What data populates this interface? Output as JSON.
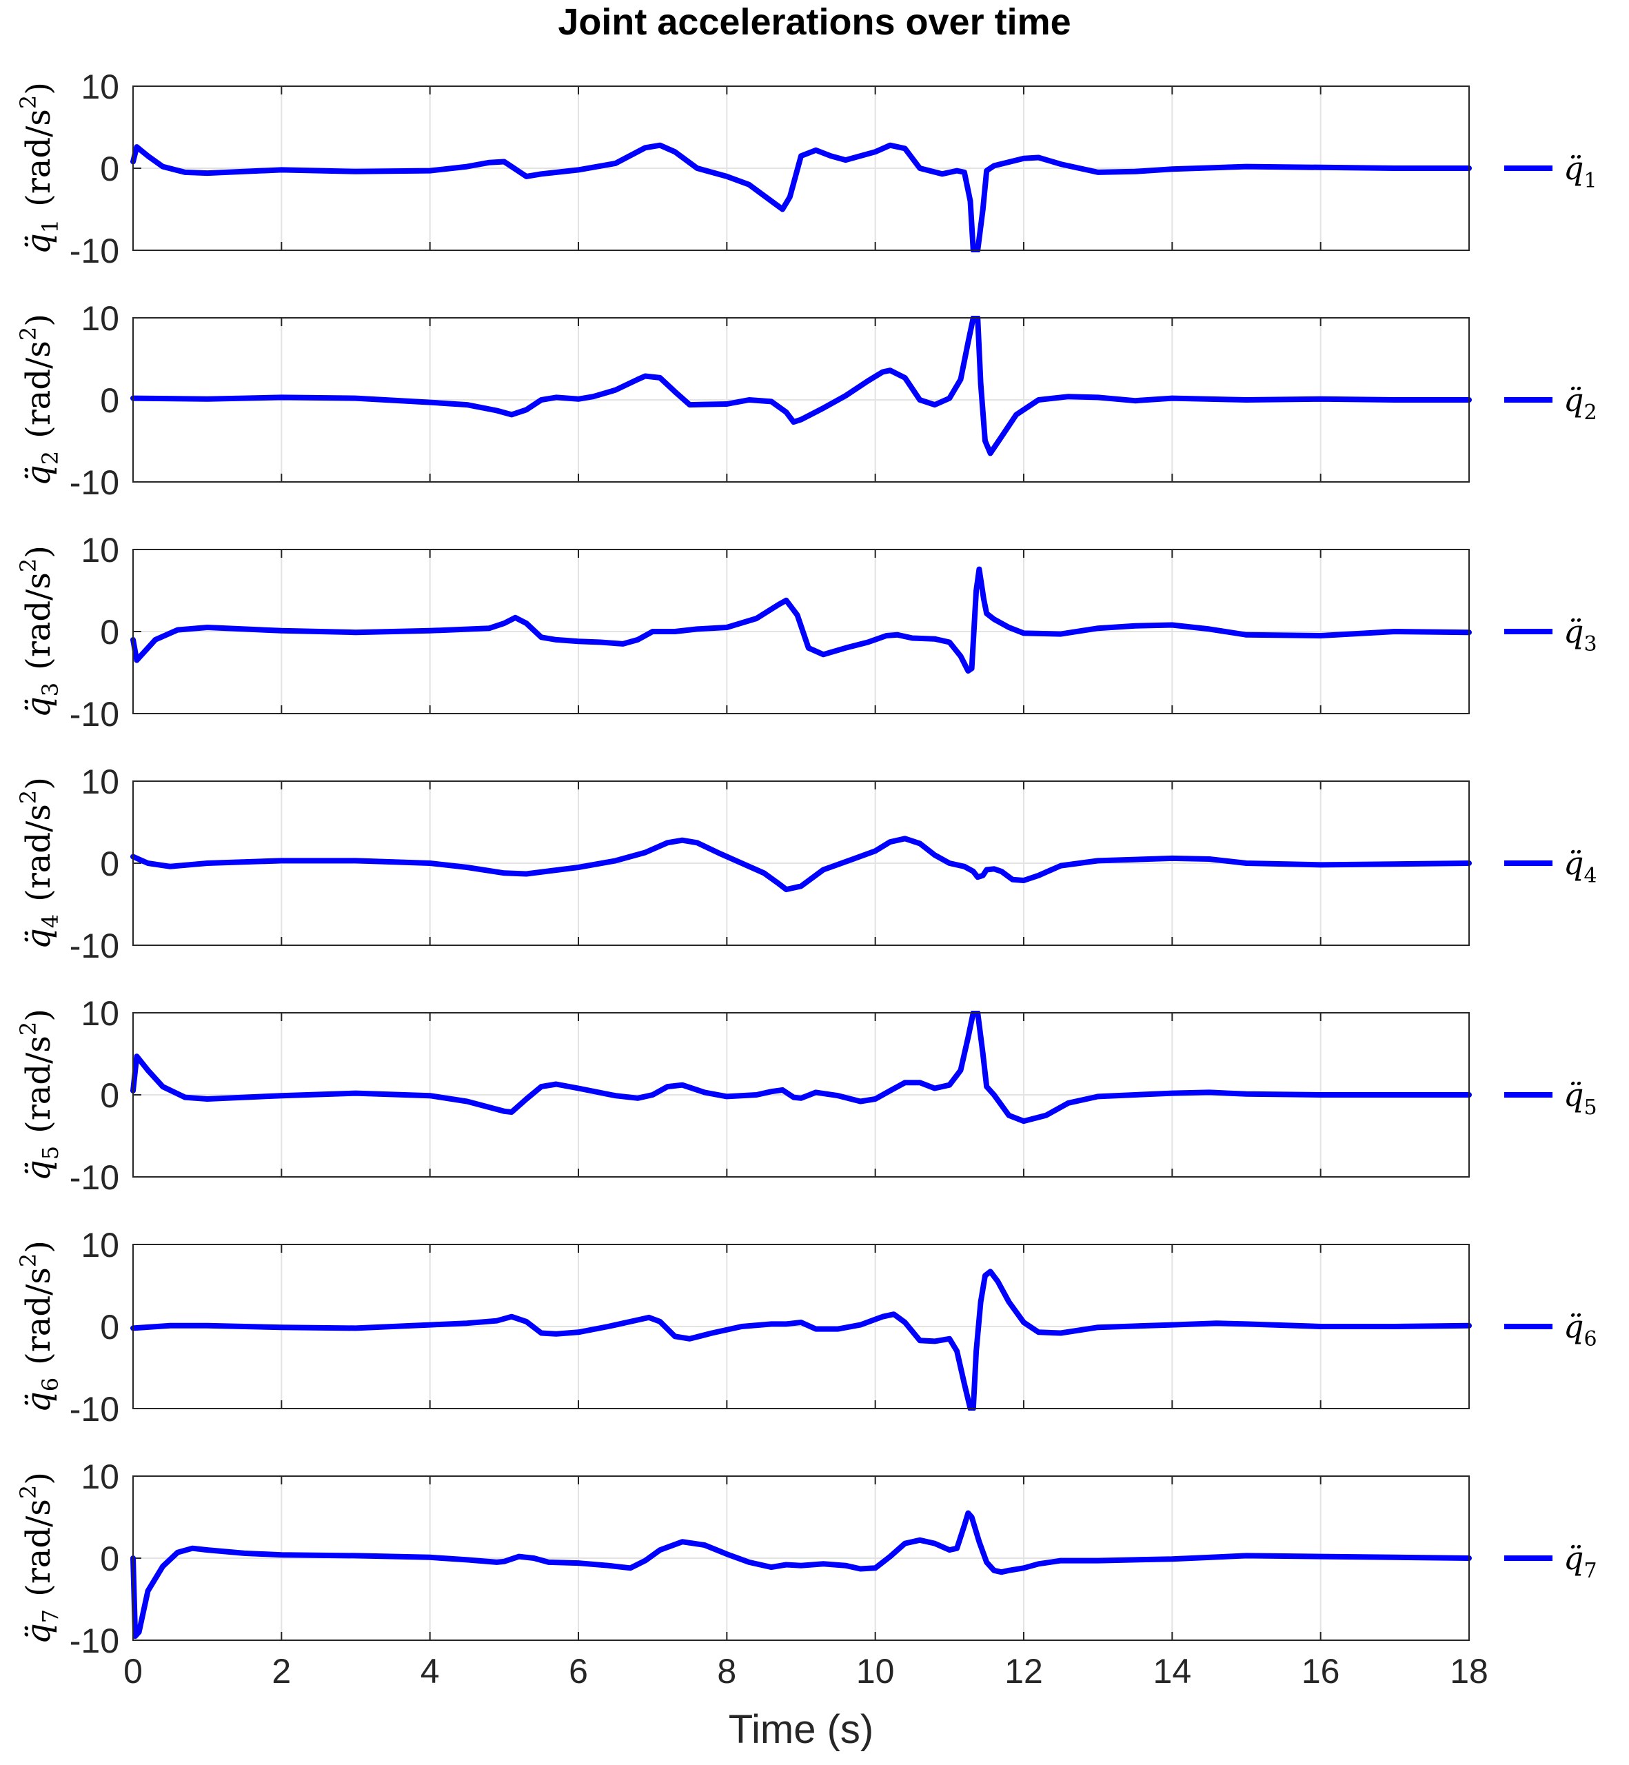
{
  "chart_data": {
    "type": "line",
    "title": "Joint accelerations over time",
    "xlabel": "Time (s)",
    "xlim": [
      0,
      18
    ],
    "ylim": [
      -10,
      10
    ],
    "x_ticks": [
      0,
      2,
      4,
      6,
      8,
      10,
      12,
      14,
      16,
      18
    ],
    "y_ticks": [
      -10,
      0,
      10
    ],
    "grid": true,
    "line_color": "#0000ff",
    "legend_placement": "right of each subplot",
    "subplots": [
      {
        "ylabel": {
          "symbol": "q̈",
          "sub": "1",
          "unit": "(rad/s",
          "sup": "2",
          "close": ")"
        },
        "legend": {
          "symbol": "q̈",
          "sub": "1"
        },
        "x": [
          0,
          0.05,
          0.2,
          0.4,
          0.7,
          1.0,
          2.0,
          3.0,
          4.0,
          4.5,
          4.8,
          5.0,
          5.1,
          5.3,
          5.5,
          6.0,
          6.5,
          6.9,
          7.1,
          7.3,
          7.6,
          8.0,
          8.3,
          8.6,
          8.75,
          8.85,
          9.0,
          9.2,
          9.4,
          9.6,
          10.0,
          10.2,
          10.4,
          10.6,
          10.9,
          11.1,
          11.2,
          11.28,
          11.32,
          11.38,
          11.45,
          11.5,
          11.6,
          12.0,
          12.2,
          12.5,
          13.0,
          13.5,
          14.0,
          15.0,
          16.0,
          17.0,
          18.0
        ],
        "y": [
          0.8,
          2.6,
          1.5,
          0.2,
          -0.5,
          -0.6,
          -0.2,
          -0.4,
          -0.3,
          0.2,
          0.7,
          0.8,
          0.2,
          -1.0,
          -0.7,
          -0.2,
          0.6,
          2.5,
          2.8,
          2.0,
          0.0,
          -1.0,
          -2.0,
          -4.0,
          -5.0,
          -3.5,
          1.5,
          2.2,
          1.5,
          1.0,
          2.0,
          2.8,
          2.4,
          0.0,
          -0.7,
          -0.3,
          -0.5,
          -4.0,
          -10.0,
          -10.0,
          -5.0,
          -0.3,
          0.3,
          1.2,
          1.3,
          0.5,
          -0.5,
          -0.4,
          -0.1,
          0.2,
          0.1,
          0.0,
          0.0
        ]
      },
      {
        "ylabel": {
          "symbol": "q̈",
          "sub": "2",
          "unit": "(rad/s",
          "sup": "2",
          "close": ")"
        },
        "legend": {
          "symbol": "q̈",
          "sub": "2"
        },
        "x": [
          0,
          1.0,
          2.0,
          3.0,
          4.0,
          4.5,
          4.9,
          5.1,
          5.3,
          5.5,
          5.7,
          6.0,
          6.2,
          6.5,
          6.8,
          6.9,
          7.1,
          7.3,
          7.5,
          8.0,
          8.3,
          8.6,
          8.8,
          8.9,
          9.0,
          9.3,
          9.6,
          9.9,
          10.1,
          10.2,
          10.4,
          10.6,
          10.8,
          11.0,
          11.15,
          11.25,
          11.32,
          11.38,
          11.42,
          11.48,
          11.55,
          11.7,
          11.9,
          12.2,
          12.6,
          13.0,
          13.5,
          14.0,
          15.0,
          16.0,
          17.0,
          18.0
        ],
        "y": [
          0.2,
          0.1,
          0.3,
          0.2,
          -0.3,
          -0.6,
          -1.3,
          -1.8,
          -1.2,
          0.0,
          0.3,
          0.1,
          0.4,
          1.2,
          2.5,
          2.9,
          2.7,
          1.0,
          -0.6,
          -0.5,
          0.0,
          -0.2,
          -1.5,
          -2.7,
          -2.4,
          -1.0,
          0.5,
          2.3,
          3.4,
          3.6,
          2.7,
          0.0,
          -0.6,
          0.2,
          2.5,
          7.0,
          10.0,
          10.0,
          2.0,
          -5.0,
          -6.5,
          -4.5,
          -1.8,
          0.0,
          0.4,
          0.3,
          -0.1,
          0.2,
          0.0,
          0.1,
          0.0,
          0.0
        ]
      },
      {
        "ylabel": {
          "symbol": "q̈",
          "sub": "3",
          "unit": "(rad/s",
          "sup": "2",
          "close": ")"
        },
        "legend": {
          "symbol": "q̈",
          "sub": "3"
        },
        "x": [
          0,
          0.05,
          0.3,
          0.6,
          1.0,
          2.0,
          3.0,
          4.0,
          4.8,
          5.0,
          5.15,
          5.3,
          5.5,
          5.7,
          6.0,
          6.3,
          6.6,
          6.8,
          7.0,
          7.3,
          7.6,
          8.0,
          8.4,
          8.7,
          8.8,
          8.95,
          9.1,
          9.3,
          9.6,
          9.9,
          10.15,
          10.3,
          10.5,
          10.8,
          11.0,
          11.15,
          11.25,
          11.3,
          11.36,
          11.4,
          11.46,
          11.5,
          11.6,
          11.8,
          12.0,
          12.5,
          13.0,
          13.5,
          14.0,
          14.5,
          15.0,
          16.0,
          17.0,
          18.0
        ],
        "y": [
          -1.0,
          -3.5,
          -1.0,
          0.2,
          0.5,
          0.1,
          -0.1,
          0.1,
          0.4,
          1.0,
          1.7,
          1.0,
          -0.7,
          -1.0,
          -1.2,
          -1.3,
          -1.5,
          -1.0,
          0.0,
          0.0,
          0.3,
          0.5,
          1.6,
          3.3,
          3.8,
          2.0,
          -2.0,
          -2.8,
          -2.0,
          -1.3,
          -0.5,
          -0.4,
          -0.8,
          -0.9,
          -1.3,
          -3.0,
          -4.8,
          -4.5,
          5.0,
          7.6,
          4.0,
          2.2,
          1.5,
          0.5,
          -0.2,
          -0.3,
          0.4,
          0.7,
          0.8,
          0.3,
          -0.4,
          -0.5,
          0.0,
          -0.1
        ]
      },
      {
        "ylabel": {
          "symbol": "q̈",
          "sub": "4",
          "unit": "(rad/s",
          "sup": "2",
          "close": ")"
        },
        "legend": {
          "symbol": "q̈",
          "sub": "4"
        },
        "x": [
          0,
          0.2,
          0.5,
          1.0,
          2.0,
          3.0,
          4.0,
          4.5,
          5.0,
          5.3,
          6.0,
          6.5,
          6.9,
          7.2,
          7.4,
          7.6,
          7.9,
          8.2,
          8.5,
          8.7,
          8.8,
          9.0,
          9.3,
          9.7,
          10.0,
          10.2,
          10.4,
          10.6,
          10.8,
          11.0,
          11.2,
          11.32,
          11.38,
          11.45,
          11.5,
          11.6,
          11.7,
          11.85,
          12.0,
          12.2,
          12.5,
          13.0,
          14.0,
          14.5,
          15.0,
          16.0,
          17.0,
          18.0
        ],
        "y": [
          0.8,
          0.0,
          -0.4,
          0.0,
          0.3,
          0.3,
          0.0,
          -0.5,
          -1.2,
          -1.3,
          -0.5,
          0.3,
          1.3,
          2.5,
          2.8,
          2.5,
          1.2,
          0.0,
          -1.2,
          -2.5,
          -3.2,
          -2.8,
          -0.8,
          0.5,
          1.5,
          2.6,
          3.0,
          2.4,
          1.0,
          0.0,
          -0.4,
          -1.0,
          -1.7,
          -1.5,
          -0.8,
          -0.7,
          -1.0,
          -2.0,
          -2.1,
          -1.5,
          -0.3,
          0.3,
          0.6,
          0.5,
          0.0,
          -0.2,
          -0.1,
          0.0
        ]
      },
      {
        "ylabel": {
          "symbol": "q̈",
          "sub": "5",
          "unit": "(rad/s",
          "sup": "2",
          "close": ")"
        },
        "legend": {
          "symbol": "q̈",
          "sub": "5"
        },
        "x": [
          0,
          0.05,
          0.2,
          0.4,
          0.7,
          1.0,
          2.0,
          3.0,
          4.0,
          4.5,
          5.0,
          5.1,
          5.3,
          5.5,
          5.7,
          6.0,
          6.5,
          6.8,
          7.0,
          7.2,
          7.4,
          7.7,
          8.0,
          8.4,
          8.6,
          8.75,
          8.9,
          9.0,
          9.2,
          9.5,
          9.8,
          10.0,
          10.2,
          10.4,
          10.6,
          10.8,
          11.0,
          11.15,
          11.25,
          11.32,
          11.38,
          11.45,
          11.5,
          11.6,
          11.8,
          12.0,
          12.3,
          12.6,
          13.0,
          14.0,
          14.5,
          15.0,
          16.0,
          17.0,
          18.0
        ],
        "y": [
          0.5,
          4.7,
          3.0,
          1.0,
          -0.3,
          -0.5,
          -0.1,
          0.2,
          -0.1,
          -0.8,
          -2.0,
          -2.1,
          -0.5,
          1.0,
          1.3,
          0.8,
          -0.1,
          -0.4,
          0.0,
          1.0,
          1.2,
          0.3,
          -0.2,
          0.0,
          0.4,
          0.6,
          -0.3,
          -0.4,
          0.3,
          -0.1,
          -0.8,
          -0.5,
          0.5,
          1.5,
          1.5,
          0.8,
          1.2,
          3.0,
          7.0,
          10.0,
          10.0,
          5.0,
          1.0,
          0.0,
          -2.5,
          -3.2,
          -2.5,
          -1.0,
          -0.2,
          0.2,
          0.3,
          0.1,
          0.0,
          0.0,
          0.0
        ]
      },
      {
        "ylabel": {
          "symbol": "q̈",
          "sub": "6",
          "unit": "(rad/s",
          "sup": "2",
          "close": ")"
        },
        "legend": {
          "symbol": "q̈",
          "sub": "6"
        },
        "x": [
          0,
          0.5,
          1.0,
          2.0,
          3.0,
          4.0,
          4.5,
          4.9,
          5.1,
          5.3,
          5.5,
          5.7,
          6.0,
          6.4,
          6.8,
          6.95,
          7.1,
          7.3,
          7.5,
          7.8,
          8.2,
          8.6,
          8.8,
          8.9,
          9.0,
          9.2,
          9.5,
          9.8,
          10.1,
          10.25,
          10.4,
          10.6,
          10.8,
          11.0,
          11.1,
          11.2,
          11.28,
          11.32,
          11.36,
          11.42,
          11.48,
          11.55,
          11.65,
          11.8,
          12.0,
          12.2,
          12.5,
          13.0,
          14.0,
          14.6,
          15.0,
          16.0,
          17.0,
          18.0
        ],
        "y": [
          -0.2,
          0.1,
          0.1,
          -0.1,
          -0.2,
          0.2,
          0.4,
          0.7,
          1.2,
          0.6,
          -0.8,
          -0.9,
          -0.7,
          0.0,
          0.8,
          1.1,
          0.6,
          -1.2,
          -1.5,
          -0.8,
          0.0,
          0.3,
          0.3,
          0.4,
          0.5,
          -0.3,
          -0.3,
          0.2,
          1.2,
          1.5,
          0.5,
          -1.7,
          -1.8,
          -1.5,
          -3.0,
          -7.0,
          -10.0,
          -10.0,
          -3.0,
          3.0,
          6.2,
          6.7,
          5.5,
          3.0,
          0.5,
          -0.7,
          -0.8,
          -0.1,
          0.2,
          0.4,
          0.3,
          0.0,
          0.0,
          0.1
        ]
      },
      {
        "ylabel": {
          "symbol": "q̈",
          "sub": "7",
          "unit": "(rad/s",
          "sup": "2",
          "close": ")"
        },
        "legend": {
          "symbol": "q̈",
          "sub": "7"
        },
        "x": [
          0,
          0.03,
          0.08,
          0.2,
          0.4,
          0.6,
          0.8,
          1.0,
          1.5,
          2.0,
          3.0,
          4.0,
          4.5,
          4.9,
          5.0,
          5.2,
          5.4,
          5.6,
          6.0,
          6.4,
          6.7,
          6.9,
          7.1,
          7.4,
          7.7,
          8.0,
          8.3,
          8.6,
          8.8,
          9.0,
          9.3,
          9.6,
          9.8,
          10.0,
          10.2,
          10.4,
          10.6,
          10.8,
          11.0,
          11.1,
          11.2,
          11.25,
          11.3,
          11.4,
          11.5,
          11.6,
          11.7,
          11.8,
          12.0,
          12.2,
          12.5,
          13.0,
          14.0,
          15.0,
          16.0,
          17.0,
          18.0
        ],
        "y": [
          0.0,
          -9.5,
          -9.0,
          -4.0,
          -1.0,
          0.7,
          1.2,
          1.0,
          0.6,
          0.4,
          0.3,
          0.1,
          -0.2,
          -0.5,
          -0.4,
          0.2,
          0.0,
          -0.5,
          -0.6,
          -0.9,
          -1.2,
          -0.3,
          1.0,
          2.0,
          1.6,
          0.5,
          -0.5,
          -1.1,
          -0.8,
          -0.9,
          -0.7,
          -0.9,
          -1.3,
          -1.2,
          0.2,
          1.8,
          2.2,
          1.8,
          1.0,
          1.2,
          4.0,
          5.5,
          5.0,
          2.0,
          -0.5,
          -1.5,
          -1.7,
          -1.5,
          -1.2,
          -0.7,
          -0.3,
          -0.3,
          -0.1,
          0.3,
          0.2,
          0.1,
          0.0
        ]
      }
    ]
  }
}
